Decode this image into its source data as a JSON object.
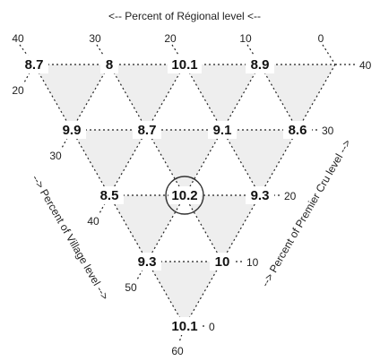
{
  "axis_titles": {
    "regional": "<-- Percent of Régional level <--",
    "village": "--> Percent of Village level -->",
    "premier_cru": "--> Percent of Premier Cru level -->"
  },
  "ticks": {
    "regional": [
      "40",
      "30",
      "20",
      "10",
      "0"
    ],
    "village": [
      "20",
      "30",
      "40",
      "50",
      "60"
    ],
    "premier_cru": [
      "40",
      "30",
      "20",
      "10",
      "0"
    ]
  },
  "nodes": {
    "r0": [
      "8.7",
      "8",
      "10.1",
      "8.9"
    ],
    "r1": [
      "9.9",
      "8.7",
      "9.1",
      "8.6"
    ],
    "r2": [
      "8.5",
      "10.2",
      "9.3"
    ],
    "r3": [
      "9.3",
      "10"
    ],
    "r4": [
      "10.1"
    ]
  },
  "highlight": "10.2",
  "colors": {
    "triangle_fill": "#eeeeee",
    "dotted_line": "#222222",
    "highlight_ring": "#333333"
  }
}
